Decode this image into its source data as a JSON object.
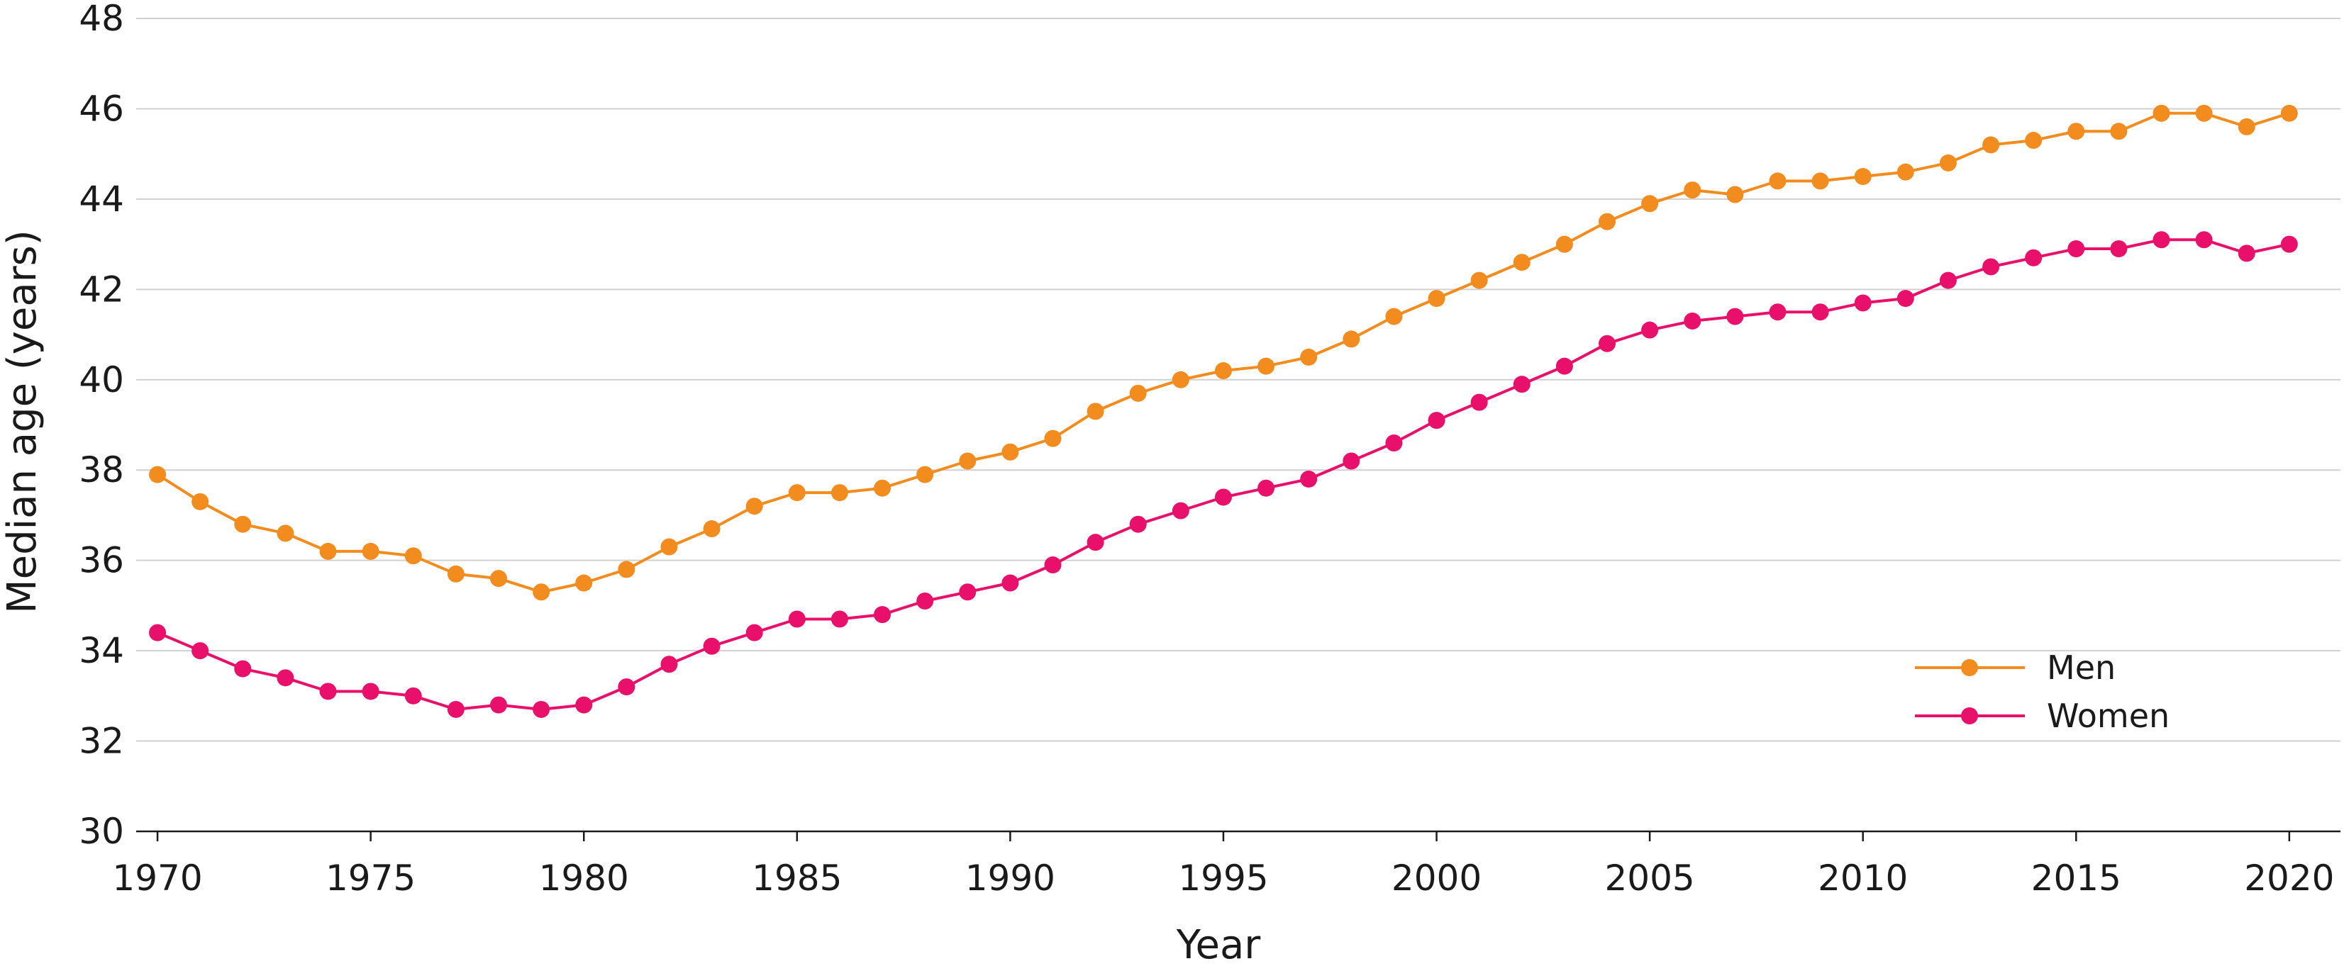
{
  "chart_data": {
    "type": "line",
    "title": "",
    "xlabel": "Year",
    "ylabel": "Median age (years)",
    "xlim": [
      1969.5,
      2021.2
    ],
    "ylim": [
      30,
      48
    ],
    "x_ticks": [
      1970,
      1975,
      1980,
      1985,
      1990,
      1995,
      2000,
      2005,
      2010,
      2015,
      2020
    ],
    "y_ticks": [
      30,
      32,
      34,
      36,
      38,
      40,
      42,
      44,
      46,
      48
    ],
    "grid": "horizontal",
    "legend_position": "bottom-right",
    "x": [
      1970,
      1971,
      1972,
      1973,
      1974,
      1975,
      1976,
      1977,
      1978,
      1979,
      1980,
      1981,
      1982,
      1983,
      1984,
      1985,
      1986,
      1987,
      1988,
      1989,
      1990,
      1991,
      1992,
      1993,
      1994,
      1995,
      1996,
      1997,
      1998,
      1999,
      2000,
      2001,
      2002,
      2003,
      2004,
      2005,
      2006,
      2007,
      2008,
      2009,
      2010,
      2011,
      2012,
      2013,
      2014,
      2015,
      2016,
      2017,
      2018,
      2019,
      2020
    ],
    "series": [
      {
        "name": "Men",
        "color": "#f28c1e",
        "values": [
          37.9,
          37.3,
          36.8,
          36.6,
          36.2,
          36.2,
          36.1,
          35.7,
          35.6,
          35.3,
          35.5,
          35.8,
          36.3,
          36.7,
          37.2,
          37.5,
          37.5,
          37.6,
          37.9,
          38.2,
          38.4,
          38.7,
          39.3,
          39.7,
          40.0,
          40.2,
          40.3,
          40.5,
          40.9,
          41.4,
          41.8,
          42.2,
          42.6,
          43.0,
          43.5,
          43.9,
          44.2,
          44.1,
          44.4,
          44.4,
          44.5,
          44.6,
          44.8,
          45.2,
          45.3,
          45.5,
          45.5,
          45.9,
          45.9,
          45.6,
          45.9
        ]
      },
      {
        "name": "Women",
        "color": "#e8106a",
        "values": [
          34.4,
          34.0,
          33.6,
          33.4,
          33.1,
          33.1,
          33.0,
          32.7,
          32.8,
          32.7,
          32.8,
          33.2,
          33.7,
          34.1,
          34.4,
          34.7,
          34.7,
          34.8,
          35.1,
          35.3,
          35.5,
          35.9,
          36.4,
          36.8,
          37.1,
          37.4,
          37.6,
          37.8,
          38.2,
          38.6,
          39.1,
          39.5,
          39.9,
          40.3,
          40.8,
          41.1,
          41.3,
          41.4,
          41.5,
          41.5,
          41.7,
          41.8,
          42.2,
          42.5,
          42.7,
          42.9,
          42.9,
          43.1,
          43.1,
          42.8,
          43.0
        ]
      }
    ]
  }
}
